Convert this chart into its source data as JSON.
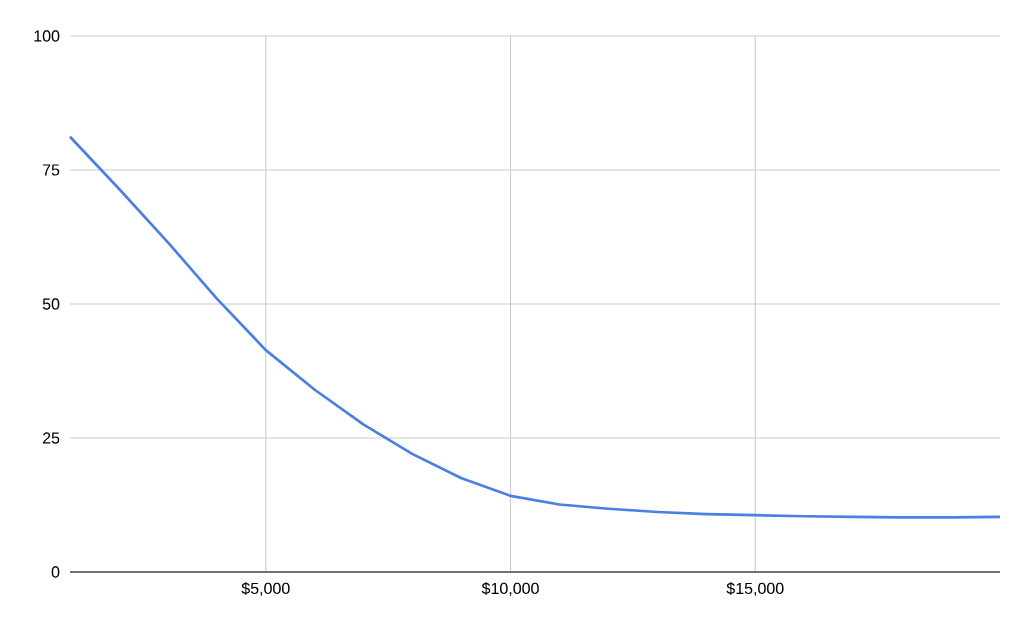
{
  "chart_data": {
    "type": "line",
    "x": [
      1000,
      2000,
      3000,
      4000,
      5000,
      6000,
      7000,
      8000,
      9000,
      10000,
      11000,
      12000,
      13000,
      14000,
      15000,
      16000,
      17000,
      18000,
      19000,
      20000
    ],
    "series": [
      {
        "color": "#4a7fe3",
        "values": [
          81.2,
          71.5,
          61.5,
          51,
          41.4,
          34,
          27.5,
          22,
          17.5,
          14.2,
          12.6,
          11.8,
          11.2,
          10.8,
          10.6,
          10.4,
          10.3,
          10.2,
          10.2,
          10.3
        ]
      }
    ],
    "xlim": [
      1000,
      20000
    ],
    "ylim": [
      0,
      100
    ],
    "xticks": [
      {
        "value": 5000,
        "label": "$5,000"
      },
      {
        "value": 10000,
        "label": "$10,000"
      },
      {
        "value": 15000,
        "label": "$15,000"
      }
    ],
    "yticks": [
      0,
      25,
      50,
      75,
      100
    ],
    "grid": true
  }
}
